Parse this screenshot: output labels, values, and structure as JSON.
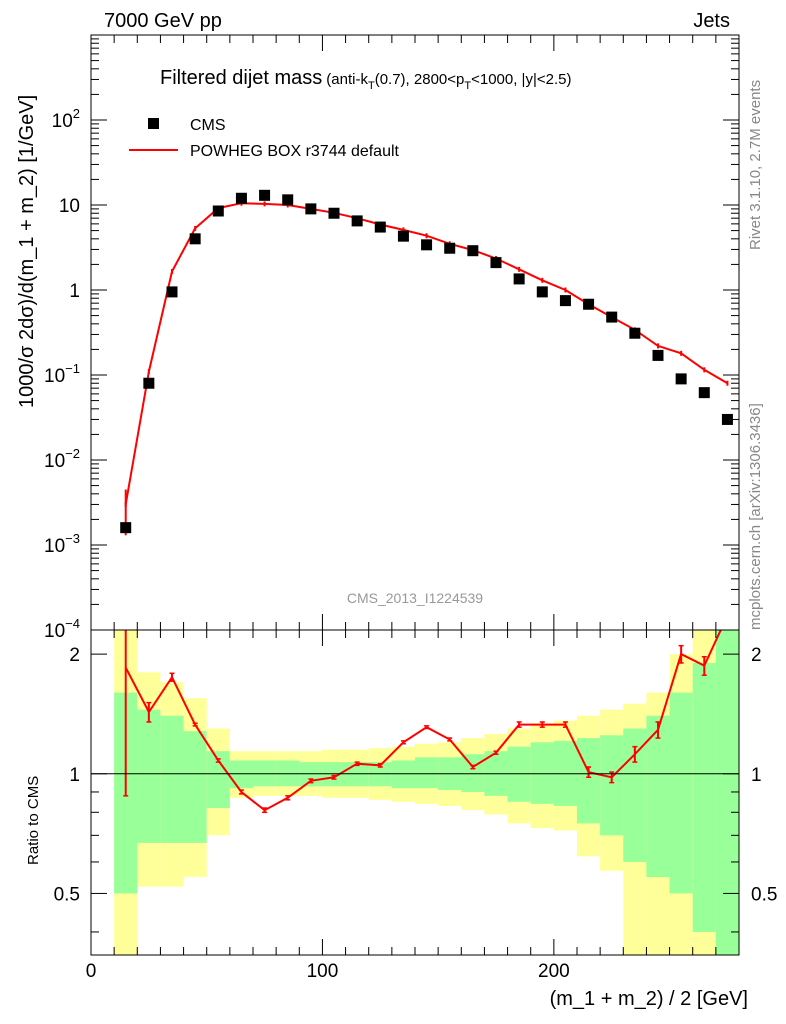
{
  "header": {
    "left": "7000 GeV pp",
    "right": "Jets"
  },
  "title": {
    "main": "Filtered dijet mass",
    "sub_prefix": "(anti-k",
    "sub_s1": "T",
    "sub_mid1": "(0.7), 2800<p",
    "sub_s2": "T",
    "sub_mid2": "<1000, |y|<2.5)"
  },
  "side": {
    "rivet": "Rivet 3.1.10,  2.7M events",
    "mcplots": "mcplots.cern.ch [arXiv:1306.3436]"
  },
  "watermark": "CMS_2013_I1224539",
  "colors": {
    "data": "#000000",
    "mc": "#ff0000",
    "band_green": "#99ff99",
    "band_yellow": "#ffff99"
  },
  "chart_data": [
    {
      "type": "scatter",
      "name": "main",
      "ylabel": "1000/σ 2dσ)/d(m_1 + m_2) [1/GeV]",
      "yscale": "log",
      "ylim": [
        0.0001,
        1000
      ],
      "xlim": [
        0,
        280
      ],
      "ytick_labels": [
        {
          "base": "10",
          "exp": "2"
        },
        {
          "base": "10",
          "exp": ""
        },
        {
          "base": "1",
          "exp": ""
        },
        {
          "base": "10",
          "exp": "−1"
        },
        {
          "base": "10",
          "exp": "−2"
        },
        {
          "base": "10",
          "exp": "−3"
        },
        {
          "base": "10",
          "exp": "−4"
        }
      ],
      "legend": {
        "placement": "top-left",
        "data_label": "CMS",
        "mc_label": "POWHEG BOX r3744 default"
      },
      "x": [
        15,
        25,
        35,
        45,
        55,
        65,
        75,
        85,
        95,
        105,
        115,
        125,
        135,
        145,
        155,
        165,
        175,
        185,
        195,
        205,
        215,
        225,
        235,
        245,
        255,
        265,
        275
      ],
      "series": [
        {
          "name": "CMS",
          "values": [
            0.0016,
            0.08,
            0.95,
            4.0,
            8.5,
            12.0,
            13.0,
            11.5,
            9.0,
            8.0,
            6.5,
            5.5,
            4.3,
            3.4,
            3.1,
            2.9,
            2.1,
            1.35,
            0.95,
            0.75,
            0.68,
            0.48,
            0.31,
            0.17,
            0.09,
            0.062,
            0.03
          ]
        },
        {
          "name": "POWHEG BOX r3744 default",
          "values": [
            0.003,
            0.11,
            1.65,
            5.3,
            9.2,
            10.5,
            10.3,
            10.0,
            9.0,
            8.1,
            7.0,
            5.9,
            5.1,
            4.35,
            3.5,
            2.95,
            2.35,
            1.75,
            1.3,
            1.0,
            0.68,
            0.48,
            0.34,
            0.22,
            0.18,
            0.115,
            0.08
          ]
        }
      ]
    },
    {
      "type": "line",
      "name": "ratio",
      "ylabel": "Ratio to CMS",
      "ylim": [
        0.35,
        2.3
      ],
      "xlim": [
        0,
        280
      ],
      "xlabel": "(m_1 + m_2) / 2 [GeV]",
      "xtick_labels": [
        "0",
        "100",
        "200"
      ],
      "ytick_labels": [
        "2",
        "1",
        "0.5"
      ],
      "x": [
        15,
        25,
        35,
        45,
        55,
        65,
        75,
        85,
        95,
        105,
        115,
        125,
        135,
        145,
        155,
        165,
        175,
        185,
        195,
        205,
        215,
        225,
        235,
        245,
        255,
        265,
        275
      ],
      "ratio": [
        1.85,
        1.43,
        1.75,
        1.33,
        1.08,
        0.9,
        0.81,
        0.87,
        0.96,
        0.98,
        1.06,
        1.05,
        1.2,
        1.31,
        1.22,
        1.04,
        1.13,
        1.33,
        1.33,
        1.33,
        1.01,
        0.98,
        1.12,
        1.29,
        2.0,
        1.87,
        2.5
      ],
      "ratio_err": [
        0.97,
        0.08,
        0.04,
        0.01,
        0.01,
        0.01,
        0.01,
        0.01,
        0.01,
        0.01,
        0.01,
        0.01,
        0.01,
        0.01,
        0.01,
        0.01,
        0.01,
        0.02,
        0.02,
        0.02,
        0.03,
        0.03,
        0.05,
        0.06,
        0.1,
        0.1,
        0.12
      ],
      "band_bins": [
        [
          10,
          20
        ],
        [
          20,
          30
        ],
        [
          30,
          40
        ],
        [
          40,
          50
        ],
        [
          50,
          60
        ],
        [
          60,
          70
        ],
        [
          70,
          80
        ],
        [
          80,
          90
        ],
        [
          90,
          100
        ],
        [
          100,
          110
        ],
        [
          110,
          120
        ],
        [
          120,
          130
        ],
        [
          130,
          140
        ],
        [
          140,
          150
        ],
        [
          150,
          160
        ],
        [
          160,
          170
        ],
        [
          170,
          180
        ],
        [
          180,
          190
        ],
        [
          190,
          200
        ],
        [
          200,
          210
        ],
        [
          210,
          220
        ],
        [
          220,
          230
        ],
        [
          230,
          240
        ],
        [
          240,
          250
        ],
        [
          250,
          260
        ],
        [
          260,
          270
        ],
        [
          270,
          280
        ]
      ],
      "green_band": [
        [
          0.5,
          1.6
        ],
        [
          0.67,
          1.45
        ],
        [
          0.67,
          1.4
        ],
        [
          0.67,
          1.28
        ],
        [
          0.82,
          1.14
        ],
        [
          0.92,
          1.08
        ],
        [
          0.93,
          1.08
        ],
        [
          0.93,
          1.08
        ],
        [
          0.93,
          1.07
        ],
        [
          0.93,
          1.07
        ],
        [
          0.93,
          1.07
        ],
        [
          0.93,
          1.07
        ],
        [
          0.92,
          1.08
        ],
        [
          0.92,
          1.1
        ],
        [
          0.91,
          1.1
        ],
        [
          0.9,
          1.12
        ],
        [
          0.88,
          1.14
        ],
        [
          0.85,
          1.17
        ],
        [
          0.84,
          1.2
        ],
        [
          0.83,
          1.21
        ],
        [
          0.75,
          1.23
        ],
        [
          0.7,
          1.25
        ],
        [
          0.6,
          1.3
        ],
        [
          0.55,
          1.4
        ],
        [
          0.5,
          1.6
        ],
        [
          0.4,
          1.9
        ],
        [
          0.35,
          2.3
        ]
      ],
      "yellow_band": [
        [
          0.35,
          2.3
        ],
        [
          0.52,
          1.8
        ],
        [
          0.52,
          1.7
        ],
        [
          0.55,
          1.55
        ],
        [
          0.7,
          1.3
        ],
        [
          0.87,
          1.14
        ],
        [
          0.88,
          1.14
        ],
        [
          0.88,
          1.14
        ],
        [
          0.88,
          1.14
        ],
        [
          0.87,
          1.15
        ],
        [
          0.87,
          1.15
        ],
        [
          0.86,
          1.16
        ],
        [
          0.85,
          1.17
        ],
        [
          0.84,
          1.19
        ],
        [
          0.83,
          1.2
        ],
        [
          0.81,
          1.23
        ],
        [
          0.79,
          1.26
        ],
        [
          0.75,
          1.3
        ],
        [
          0.73,
          1.34
        ],
        [
          0.72,
          1.36
        ],
        [
          0.62,
          1.4
        ],
        [
          0.57,
          1.45
        ],
        [
          0.35,
          1.5
        ],
        [
          0.35,
          1.6
        ],
        [
          0.35,
          2.0
        ],
        [
          0.35,
          2.3
        ],
        [
          0.35,
          2.3
        ]
      ]
    }
  ]
}
